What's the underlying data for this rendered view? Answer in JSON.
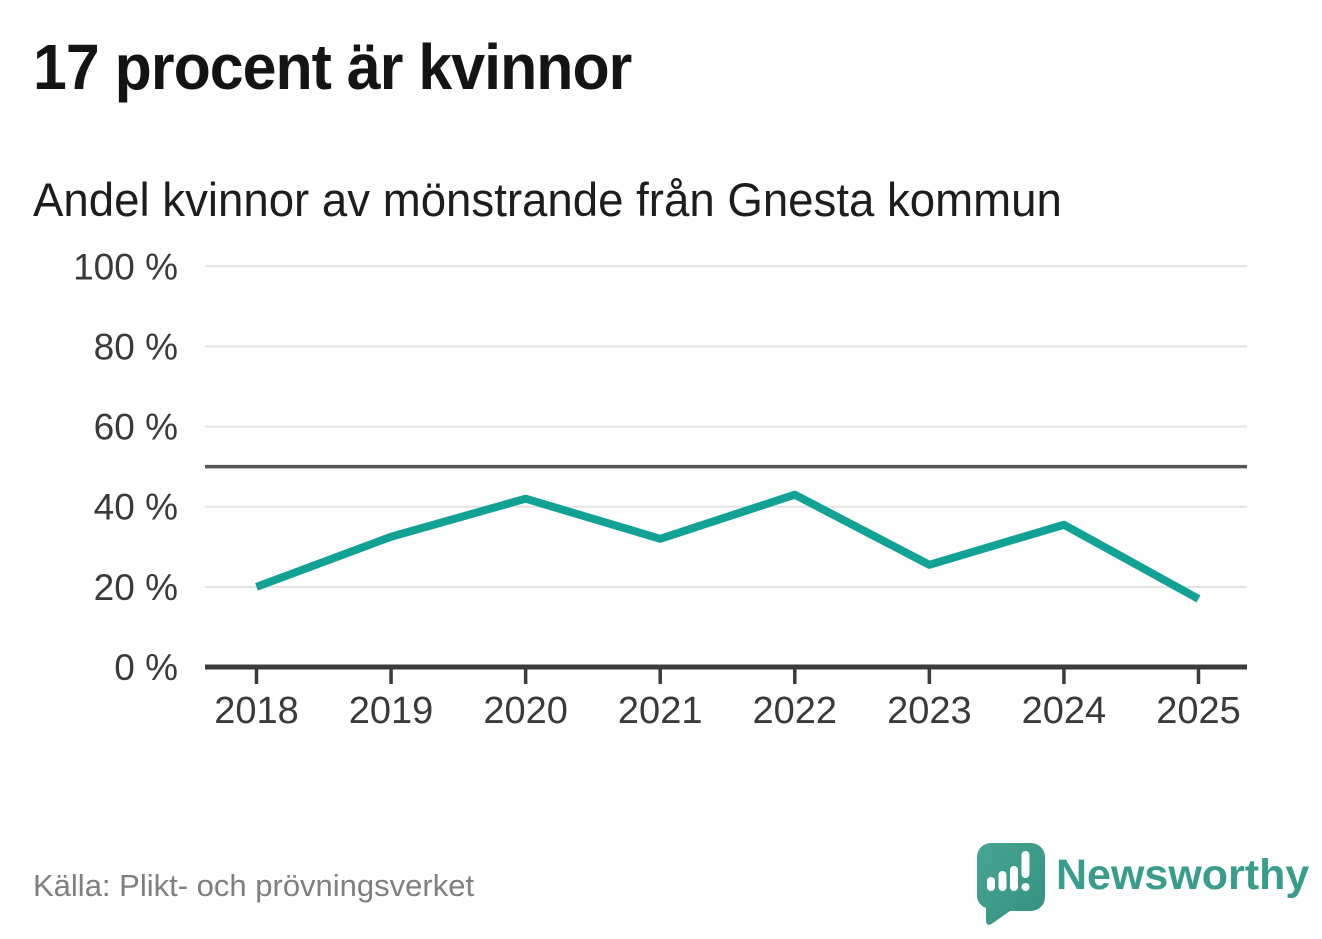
{
  "header": {
    "title": "17 procent är kvinnor",
    "subtitle": "Andel kvinnor av mönstrande från Gnesta kommun"
  },
  "chart_data": {
    "type": "line",
    "title": "17 procent är kvinnor",
    "subtitle": "Andel kvinnor av mönstrande från Gnesta kommun",
    "categories": [
      "2018",
      "2019",
      "2020",
      "2021",
      "2022",
      "2023",
      "2024",
      "2025"
    ],
    "series": [
      {
        "name": "Andel kvinnor av mönstrande",
        "color": "#12A295",
        "values": [
          20,
          32.5,
          42,
          32,
          43,
          25.5,
          35.5,
          17
        ]
      }
    ],
    "ylim": [
      0,
      100
    ],
    "ytick_values": [
      0,
      20,
      40,
      60,
      80,
      100
    ],
    "ytick_labels": [
      "0 %",
      "20 %",
      "40 %",
      "60 %",
      "80 %",
      "100 %"
    ],
    "reference_line_value": 50,
    "grid": true,
    "legend": "none"
  },
  "footer": {
    "source": "Källa: Plikt- och prövningsverket",
    "brand_name": "Newsworthy",
    "logo_icon": "speech-bubble-bar-chart-icon"
  },
  "colors": {
    "line": "#12A295",
    "gridline": "#E3E3E3",
    "reference_line": "#55565A",
    "axis": "#3B3B3B",
    "tick_label": "#3A3A3A",
    "title_text": "#141414",
    "subtitle_text": "#1D1D1D",
    "source_text": "#7F7F7F",
    "brand_teal": "#3A9C8B",
    "logo_gradient_start": "#47A493",
    "logo_gradient_end": "#35917F",
    "background": "#FFFFFF"
  }
}
